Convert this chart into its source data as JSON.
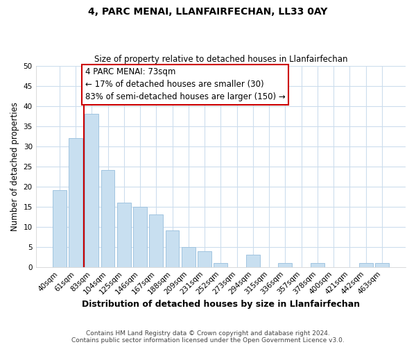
{
  "title": "4, PARC MENAI, LLANFAIRFECHAN, LL33 0AY",
  "subtitle": "Size of property relative to detached houses in Llanfairfechan",
  "xlabel": "Distribution of detached houses by size in Llanfairfechan",
  "ylabel": "Number of detached properties",
  "bar_labels": [
    "40sqm",
    "61sqm",
    "83sqm",
    "104sqm",
    "125sqm",
    "146sqm",
    "167sqm",
    "188sqm",
    "209sqm",
    "231sqm",
    "252sqm",
    "273sqm",
    "294sqm",
    "315sqm",
    "336sqm",
    "357sqm",
    "378sqm",
    "400sqm",
    "421sqm",
    "442sqm",
    "463sqm"
  ],
  "bar_values": [
    19,
    32,
    38,
    24,
    16,
    15,
    13,
    9,
    5,
    4,
    1,
    0,
    3,
    0,
    1,
    0,
    1,
    0,
    0,
    1,
    1
  ],
  "bar_color": "#c8dff0",
  "bar_edge_color": "#a0c4e0",
  "vline_color": "#cc0000",
  "ylim": [
    0,
    50
  ],
  "yticks": [
    0,
    5,
    10,
    15,
    20,
    25,
    30,
    35,
    40,
    45,
    50
  ],
  "annotation_title": "4 PARC MENAI: 73sqm",
  "annotation_line1": "← 17% of detached houses are smaller (30)",
  "annotation_line2": "83% of semi-detached houses are larger (150) →",
  "annotation_box_color": "#ffffff",
  "annotation_box_edge": "#cc0000",
  "footer_line1": "Contains HM Land Registry data © Crown copyright and database right 2024.",
  "footer_line2": "Contains public sector information licensed under the Open Government Licence v3.0.",
  "background_color": "#ffffff",
  "grid_color": "#ccdded"
}
